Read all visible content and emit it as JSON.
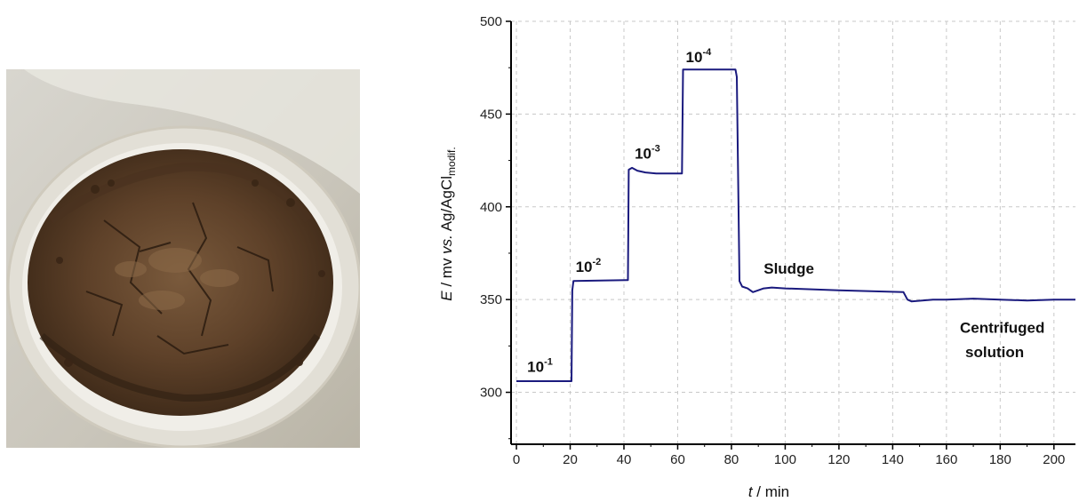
{
  "chart_data": {
    "type": "line",
    "xlabel_var": "t",
    "xlabel_unit": " / min",
    "ylabel_var": "E",
    "ylabel_mid": " / mv ",
    "ylabel_vs": "vs.",
    "ylabel_ref": " Ag/AgCl",
    "ylabel_sub": "modif.",
    "xlim": [
      -2,
      208
    ],
    "ylim": [
      272,
      500
    ],
    "x_ticks": [
      0,
      20,
      40,
      60,
      80,
      100,
      120,
      140,
      160,
      180,
      200
    ],
    "y_ticks": [
      300,
      350,
      400,
      450,
      500
    ],
    "grid": true,
    "line_color": "#1a1a7e",
    "series": [
      {
        "x": [
          0,
          20.5,
          20.8,
          21.2,
          41,
          41.5,
          41.8,
          43,
          45,
          48,
          52,
          61.6,
          62,
          62.4,
          81.5,
          82,
          83,
          84,
          86,
          88,
          90,
          92,
          95,
          100,
          120,
          144,
          145.5,
          147,
          155,
          160,
          170,
          180,
          190,
          200,
          208
        ],
        "y": [
          306,
          306,
          355,
          360,
          360.5,
          360.5,
          420,
          421,
          419.5,
          418.5,
          418,
          418,
          474,
          474,
          474,
          470,
          360,
          357,
          356,
          354,
          355,
          356,
          356.5,
          356,
          355,
          354,
          350,
          349,
          350,
          350,
          350.5,
          350,
          349.5,
          350,
          350
        ]
      }
    ],
    "annotations": [
      {
        "base": "10",
        "sup": "-1",
        "x": 4,
        "y": 311
      },
      {
        "base": "10",
        "sup": "-2",
        "x": 22,
        "y": 365
      },
      {
        "base": "10",
        "sup": "-3",
        "x": 44,
        "y": 426
      },
      {
        "base": "10",
        "sup": "-4",
        "x": 63,
        "y": 478
      },
      {
        "text": "Sludge",
        "x": 92,
        "y": 364
      },
      {
        "text": "Centrifuged",
        "x": 165,
        "y": 332
      },
      {
        "text": "solution",
        "x": 167,
        "y": 319
      }
    ]
  },
  "photo": {
    "description_icon": "sludge-sample-photo"
  }
}
